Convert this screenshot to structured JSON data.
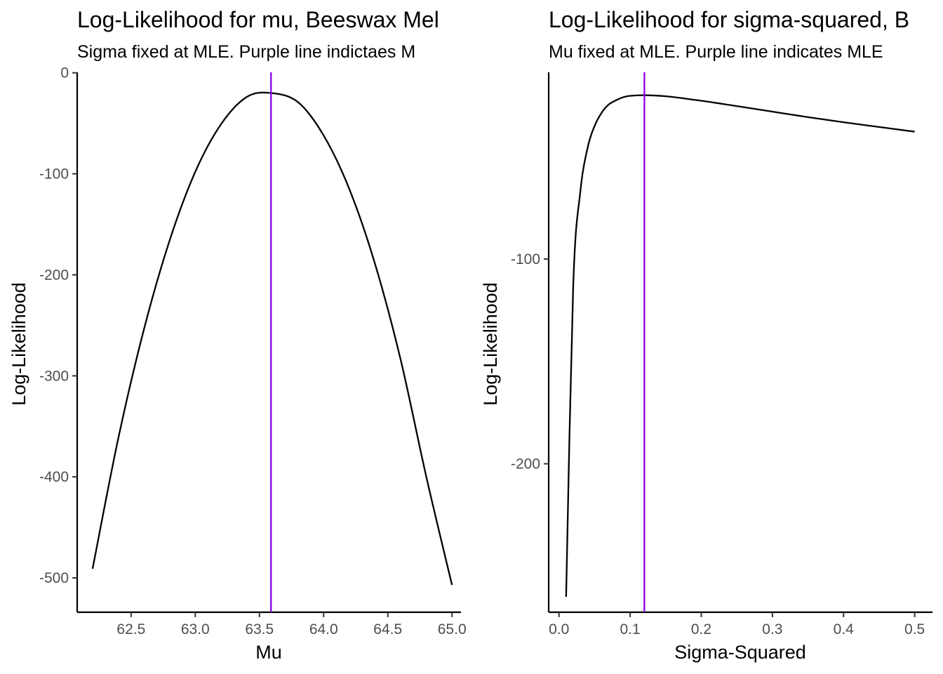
{
  "colors": {
    "curve": "#000000",
    "mle_line": "#8a00e6"
  },
  "chart_data": [
    {
      "type": "line",
      "title": "Log-Likelihood for mu, Beeswax Mel",
      "subtitle": "Sigma fixed at MLE. Purple line indictaes M",
      "xlabel": "Mu",
      "ylabel": "Log-Likelihood",
      "xlim": [
        62.08,
        65.07
      ],
      "ylim": [
        -534,
        0.5
      ],
      "x_ticks": [
        62.5,
        63.0,
        63.5,
        64.0,
        64.5,
        65.0
      ],
      "x_tick_labels": [
        "62.5",
        "63.0",
        "63.5",
        "64.0",
        "64.5",
        "65.0"
      ],
      "y_ticks": [
        0,
        -100,
        -200,
        -300,
        -400,
        -500
      ],
      "y_tick_labels": [
        "0",
        "-100",
        "-200",
        "-300",
        "-400",
        "-500"
      ],
      "mle_x": 63.59,
      "grid": false,
      "legend": "none",
      "series": [
        {
          "x": [
            62.2,
            62.4,
            62.6,
            62.8,
            63.0,
            63.2,
            63.4,
            63.59,
            63.8,
            64.0,
            64.2,
            64.4,
            64.6,
            64.8,
            65.0
          ],
          "y": [
            -491,
            -362,
            -254,
            -166,
            -98,
            -51,
            -24,
            -20,
            -29,
            -62,
            -115,
            -189,
            -284,
            -400,
            -507
          ]
        }
      ]
    },
    {
      "type": "line",
      "title": "Log-Likelihood for sigma-squared, B",
      "subtitle": "Mu fixed at MLE. Purple line indicates MLE",
      "xlabel": "Sigma-Squared",
      "ylabel": "Log-Likelihood",
      "xlim": [
        -0.0145,
        0.525
      ],
      "ylim": [
        -272.5,
        -8.8
      ],
      "x_ticks": [
        0.0,
        0.1,
        0.2,
        0.3,
        0.4,
        0.5
      ],
      "x_tick_labels": [
        "0.0",
        "0.1",
        "0.2",
        "0.3",
        "0.4",
        "0.5"
      ],
      "y_ticks": [
        -100,
        -200
      ],
      "y_tick_labels": [
        "-100",
        "-200"
      ],
      "mle_x": 0.12,
      "grid": false,
      "legend": "none",
      "series": [
        {
          "x": [
            0.01,
            0.02,
            0.03,
            0.04,
            0.05,
            0.06,
            0.07,
            0.08,
            0.09,
            0.1,
            0.12,
            0.15,
            0.2,
            0.25,
            0.3,
            0.35,
            0.4,
            0.45,
            0.5
          ],
          "y": [
            -265,
            -113,
            -67,
            -46,
            -35,
            -28.5,
            -24.5,
            -22.5,
            -21,
            -20.3,
            -20,
            -20.5,
            -22.7,
            -25.3,
            -28,
            -30.7,
            -33.2,
            -35.5,
            -37.8
          ]
        }
      ]
    }
  ]
}
